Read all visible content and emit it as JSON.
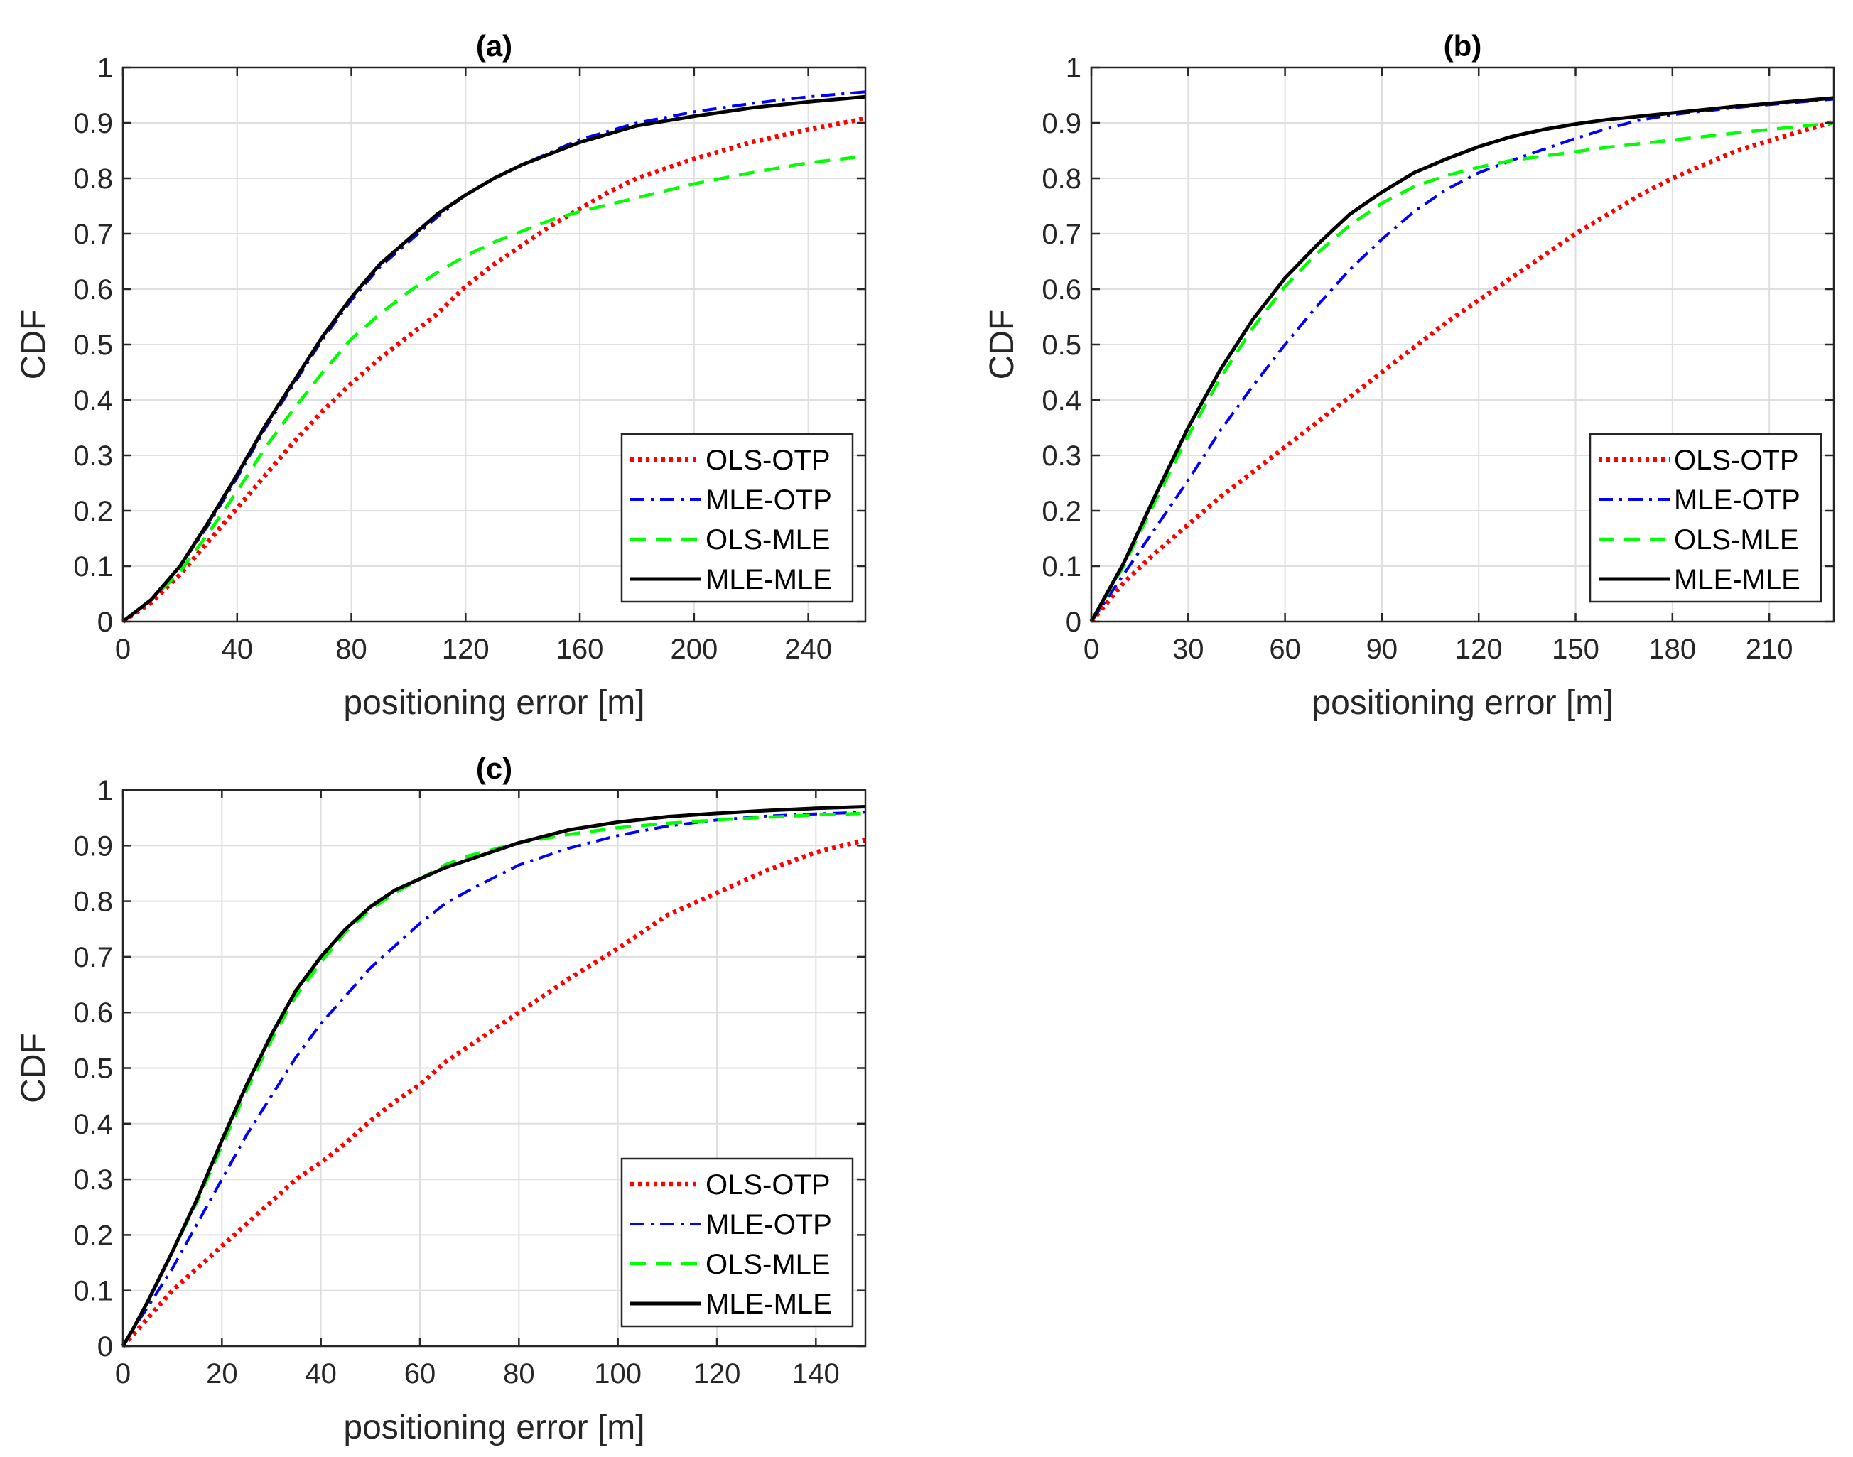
{
  "colors": {
    "OLS-OTP": "#ff0000",
    "MLE-OTP": "#0000ff",
    "OLS-MLE": "#00ff00",
    "MLE-MLE": "#000000",
    "grid": "#dfdfdf",
    "axis": "#262626"
  },
  "chart_data": [
    {
      "type": "line",
      "title": "(a)",
      "xlabel": "positioning error [m]",
      "ylabel": "CDF",
      "xlim": [
        0,
        260
      ],
      "ylim": [
        0,
        1
      ],
      "xticks": [
        0,
        40,
        80,
        120,
        160,
        200,
        240
      ],
      "yticks": [
        0,
        0.1,
        0.2,
        0.3,
        0.4,
        0.5,
        0.6,
        0.7,
        0.8,
        0.9,
        1
      ],
      "grid": true,
      "legend_position": "bottom-right",
      "series": [
        {
          "name": "OLS-OTP",
          "style": "dotted",
          "x": [
            0,
            10,
            20,
            30,
            40,
            50,
            60,
            70,
            80,
            90,
            100,
            110,
            120,
            130,
            140,
            150,
            160,
            170,
            180,
            200,
            220,
            240,
            260
          ],
          "y": [
            0,
            0.035,
            0.085,
            0.145,
            0.205,
            0.265,
            0.325,
            0.38,
            0.43,
            0.475,
            0.515,
            0.555,
            0.605,
            0.645,
            0.68,
            0.715,
            0.745,
            0.775,
            0.8,
            0.835,
            0.865,
            0.888,
            0.908
          ]
        },
        {
          "name": "MLE-OTP",
          "style": "dashdot",
          "x": [
            0,
            10,
            20,
            30,
            40,
            50,
            60,
            70,
            80,
            90,
            100,
            110,
            120,
            130,
            140,
            160,
            180,
            200,
            220,
            240,
            260
          ],
          "y": [
            0,
            0.04,
            0.1,
            0.175,
            0.26,
            0.35,
            0.43,
            0.51,
            0.58,
            0.64,
            0.685,
            0.73,
            0.77,
            0.8,
            0.825,
            0.87,
            0.9,
            0.92,
            0.935,
            0.947,
            0.956
          ]
        },
        {
          "name": "OLS-MLE",
          "style": "dashed",
          "x": [
            0,
            10,
            20,
            30,
            40,
            50,
            60,
            70,
            80,
            90,
            100,
            110,
            120,
            130,
            140,
            150,
            160,
            180,
            200,
            220,
            240,
            260
          ],
          "y": [
            0,
            0.04,
            0.09,
            0.16,
            0.235,
            0.315,
            0.385,
            0.45,
            0.51,
            0.555,
            0.595,
            0.63,
            0.66,
            0.685,
            0.705,
            0.725,
            0.74,
            0.765,
            0.79,
            0.81,
            0.828,
            0.84
          ]
        },
        {
          "name": "MLE-MLE",
          "style": "solid",
          "x": [
            0,
            10,
            20,
            30,
            40,
            50,
            60,
            70,
            80,
            90,
            100,
            110,
            120,
            130,
            140,
            160,
            180,
            200,
            220,
            240,
            260
          ],
          "y": [
            0,
            0.04,
            0.1,
            0.18,
            0.265,
            0.355,
            0.435,
            0.515,
            0.585,
            0.645,
            0.69,
            0.735,
            0.77,
            0.8,
            0.825,
            0.865,
            0.895,
            0.912,
            0.927,
            0.938,
            0.947
          ]
        }
      ]
    },
    {
      "type": "line",
      "title": "(b)",
      "xlabel": "positioning error [m]",
      "ylabel": "CDF",
      "xlim": [
        0,
        230
      ],
      "ylim": [
        0,
        1
      ],
      "xticks": [
        0,
        30,
        60,
        90,
        120,
        150,
        180,
        210
      ],
      "yticks": [
        0,
        0.1,
        0.2,
        0.3,
        0.4,
        0.5,
        0.6,
        0.7,
        0.8,
        0.9,
        1
      ],
      "grid": true,
      "legend_position": "bottom-right",
      "series": [
        {
          "name": "OLS-OTP",
          "style": "dotted",
          "x": [
            0,
            10,
            20,
            30,
            40,
            50,
            60,
            70,
            80,
            90,
            100,
            110,
            120,
            130,
            140,
            150,
            160,
            170,
            180,
            190,
            200,
            210,
            220,
            230
          ],
          "y": [
            0,
            0.07,
            0.125,
            0.175,
            0.225,
            0.27,
            0.315,
            0.36,
            0.405,
            0.45,
            0.495,
            0.54,
            0.58,
            0.62,
            0.66,
            0.7,
            0.735,
            0.77,
            0.8,
            0.825,
            0.85,
            0.868,
            0.885,
            0.902
          ]
        },
        {
          "name": "MLE-OTP",
          "style": "dashdot",
          "x": [
            0,
            10,
            20,
            30,
            40,
            50,
            60,
            70,
            80,
            90,
            100,
            110,
            120,
            130,
            140,
            150,
            160,
            170,
            180,
            200,
            220,
            230
          ],
          "y": [
            0,
            0.085,
            0.17,
            0.255,
            0.345,
            0.425,
            0.5,
            0.57,
            0.635,
            0.69,
            0.74,
            0.78,
            0.81,
            0.832,
            0.852,
            0.872,
            0.89,
            0.905,
            0.915,
            0.928,
            0.938,
            0.943
          ]
        },
        {
          "name": "OLS-MLE",
          "style": "dashed",
          "x": [
            0,
            10,
            20,
            30,
            40,
            50,
            60,
            70,
            80,
            90,
            100,
            110,
            120,
            130,
            140,
            150,
            160,
            180,
            200,
            220,
            230
          ],
          "y": [
            0,
            0.1,
            0.22,
            0.335,
            0.44,
            0.53,
            0.605,
            0.665,
            0.715,
            0.755,
            0.785,
            0.805,
            0.82,
            0.832,
            0.84,
            0.848,
            0.856,
            0.869,
            0.882,
            0.894,
            0.9
          ]
        },
        {
          "name": "MLE-MLE",
          "style": "solid",
          "x": [
            0,
            10,
            20,
            30,
            40,
            50,
            60,
            70,
            80,
            90,
            100,
            110,
            120,
            130,
            140,
            150,
            160,
            180,
            200,
            220,
            230
          ],
          "y": [
            0,
            0.105,
            0.23,
            0.35,
            0.455,
            0.545,
            0.62,
            0.68,
            0.735,
            0.775,
            0.81,
            0.835,
            0.857,
            0.875,
            0.888,
            0.898,
            0.906,
            0.918,
            0.93,
            0.94,
            0.945
          ]
        }
      ]
    },
    {
      "type": "line",
      "title": "(c)",
      "xlabel": "positioning error [m]",
      "ylabel": "CDF",
      "xlim": [
        0,
        150
      ],
      "ylim": [
        0,
        1
      ],
      "xticks": [
        0,
        20,
        40,
        60,
        80,
        100,
        120,
        140
      ],
      "yticks": [
        0,
        0.1,
        0.2,
        0.3,
        0.4,
        0.5,
        0.6,
        0.7,
        0.8,
        0.9,
        1
      ],
      "grid": true,
      "legend_position": "bottom-right",
      "series": [
        {
          "name": "OLS-OTP",
          "style": "dotted",
          "x": [
            0,
            2,
            5,
            10,
            15,
            20,
            25,
            30,
            35,
            40,
            45,
            50,
            55,
            60,
            65,
            70,
            80,
            90,
            100,
            110,
            120,
            130,
            140,
            150
          ],
          "y": [
            0,
            0.02,
            0.05,
            0.1,
            0.14,
            0.18,
            0.22,
            0.26,
            0.3,
            0.33,
            0.365,
            0.405,
            0.44,
            0.47,
            0.51,
            0.54,
            0.6,
            0.66,
            0.715,
            0.775,
            0.815,
            0.855,
            0.888,
            0.91
          ]
        },
        {
          "name": "MLE-OTP",
          "style": "dashdot",
          "x": [
            0,
            2,
            5,
            10,
            15,
            20,
            25,
            30,
            35,
            40,
            45,
            50,
            55,
            60,
            65,
            70,
            80,
            90,
            100,
            110,
            120,
            130,
            140,
            150
          ],
          "y": [
            0,
            0.03,
            0.07,
            0.14,
            0.22,
            0.3,
            0.38,
            0.45,
            0.52,
            0.58,
            0.63,
            0.68,
            0.72,
            0.76,
            0.795,
            0.82,
            0.865,
            0.895,
            0.918,
            0.935,
            0.946,
            0.953,
            0.957,
            0.96
          ]
        },
        {
          "name": "OLS-MLE",
          "style": "dashed",
          "x": [
            0,
            2,
            5,
            10,
            15,
            20,
            25,
            30,
            35,
            40,
            45,
            50,
            55,
            60,
            65,
            70,
            80,
            90,
            100,
            110,
            120,
            130,
            140,
            150
          ],
          "y": [
            0,
            0.03,
            0.08,
            0.17,
            0.26,
            0.36,
            0.46,
            0.55,
            0.63,
            0.69,
            0.745,
            0.785,
            0.815,
            0.84,
            0.865,
            0.882,
            0.905,
            0.92,
            0.932,
            0.94,
            0.946,
            0.951,
            0.955,
            0.958
          ]
        },
        {
          "name": "MLE-MLE",
          "style": "solid",
          "x": [
            0,
            2,
            5,
            10,
            15,
            20,
            25,
            30,
            35,
            40,
            45,
            50,
            55,
            60,
            65,
            70,
            80,
            90,
            100,
            110,
            120,
            130,
            140,
            150
          ],
          "y": [
            0,
            0.03,
            0.08,
            0.17,
            0.265,
            0.37,
            0.47,
            0.56,
            0.64,
            0.7,
            0.75,
            0.79,
            0.82,
            0.84,
            0.86,
            0.875,
            0.905,
            0.928,
            0.942,
            0.952,
            0.958,
            0.963,
            0.967,
            0.97
          ]
        }
      ]
    }
  ]
}
